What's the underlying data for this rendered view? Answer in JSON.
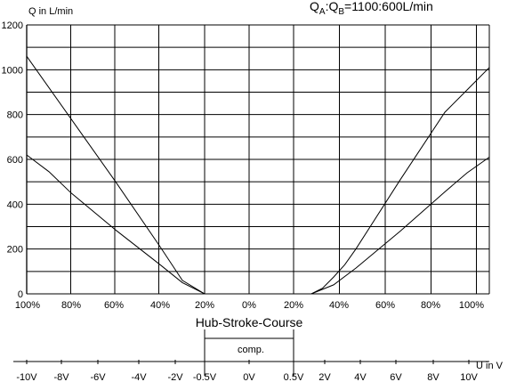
{
  "chart_data": {
    "type": "line",
    "title_parts": [
      "Q",
      "A",
      ":Q",
      "B",
      "=1100:600L/min"
    ],
    "ylabel": "Q in L/min",
    "ylim": [
      0,
      1200
    ],
    "y_ticks": [
      "0",
      "200",
      "400",
      "600",
      "800",
      "1000",
      "1200"
    ],
    "x_stroke_labels": [
      "100%",
      "80%",
      "60%",
      "40%",
      "20%",
      "0%",
      "20%",
      "40%",
      "60%",
      "80%",
      "100%"
    ],
    "xlabel": "Hub-Stroke-Course",
    "comp_label": "comp.",
    "voltage_labels": [
      "-10V",
      "-8V",
      "-6V",
      "-4V",
      "-2V",
      "-0.5V",
      "0V",
      "0.5V",
      "2V",
      "4V",
      "6V",
      "8V",
      "10V"
    ],
    "voltage_axis_label": "U in V",
    "grid": true,
    "x_unit": "stroke %, negative = left half",
    "series": [
      {
        "values": [
          [
            -100,
            1060
          ],
          [
            -80,
            780
          ],
          [
            -60,
            500
          ],
          [
            -40,
            210
          ],
          [
            -30,
            60
          ],
          [
            -20,
            0
          ],
          [
            20,
            0
          ],
          [
            25,
            25
          ],
          [
            30,
            75
          ],
          [
            35,
            130
          ],
          [
            40,
            200
          ],
          [
            60,
            510
          ],
          [
            80,
            810
          ],
          [
            90,
            910
          ],
          [
            100,
            1010
          ]
        ]
      },
      {
        "values": [
          [
            -100,
            620
          ],
          [
            -90,
            545
          ],
          [
            -80,
            450
          ],
          [
            -60,
            285
          ],
          [
            -40,
            130
          ],
          [
            -30,
            50
          ],
          [
            -25,
            25
          ],
          [
            -20,
            0
          ],
          [
            20,
            0
          ],
          [
            30,
            40
          ],
          [
            40,
            115
          ],
          [
            60,
            280
          ],
          [
            80,
            455
          ],
          [
            90,
            540
          ],
          [
            100,
            610
          ]
        ]
      }
    ]
  }
}
